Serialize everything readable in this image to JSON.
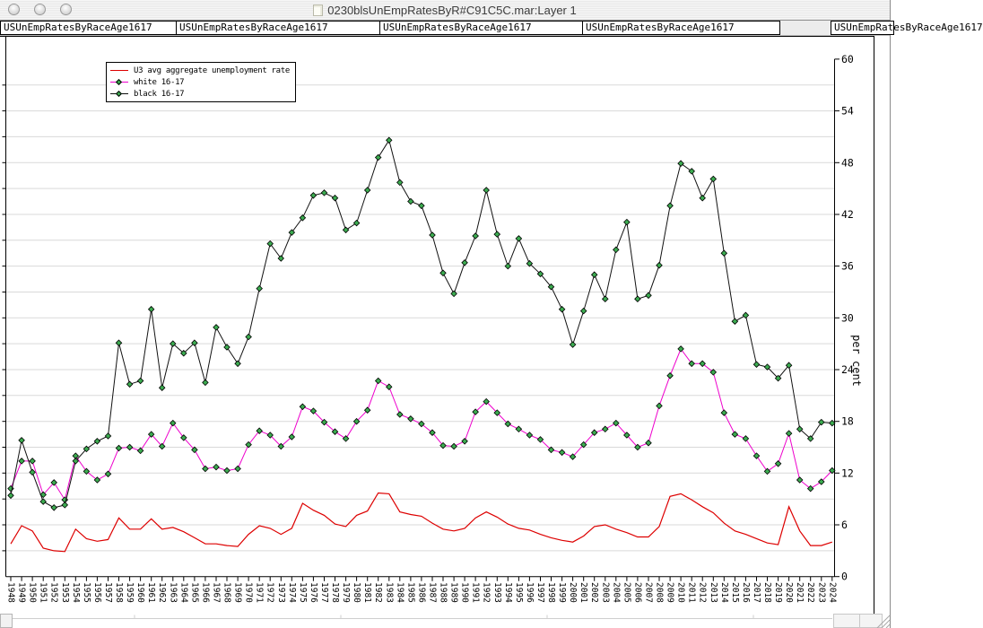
{
  "window": {
    "title": "0230blsUnEmpRatesByR#C91C5C.mar:Layer 1"
  },
  "tabs": {
    "items": [
      {
        "label": "USUnEmpRatesByRaceAge1617"
      },
      {
        "label": "USUnEmpRatesByRaceAge1617"
      },
      {
        "label": "USUnEmpRatesByRaceAge1617"
      },
      {
        "label": "USUnEmpRatesByRaceAge1617"
      },
      {
        "label": "USUnEmpRatesByRaceAge1617"
      }
    ]
  },
  "chart_data": {
    "type": "line",
    "title": "",
    "xlabel": "",
    "ylabel": "per cent",
    "ylim": [
      0,
      60
    ],
    "yticks": [
      0,
      6,
      12,
      18,
      24,
      30,
      36,
      42,
      48,
      54,
      60
    ],
    "grid": true,
    "grid_step": 3,
    "legend_position": "top-left",
    "grid_color": "#d9d9d9",
    "axis_color": "#000000",
    "marker_fill": "#3cab50",
    "x": [
      1948,
      1949,
      1950,
      1951,
      1952,
      1953,
      1954,
      1955,
      1956,
      1957,
      1958,
      1959,
      1960,
      1961,
      1962,
      1963,
      1964,
      1965,
      1966,
      1967,
      1968,
      1969,
      1970,
      1971,
      1972,
      1973,
      1974,
      1975,
      1976,
      1977,
      1978,
      1979,
      1980,
      1981,
      1982,
      1983,
      1984,
      1985,
      1986,
      1987,
      1988,
      1989,
      1990,
      1991,
      1992,
      1993,
      1994,
      1995,
      1996,
      1997,
      1998,
      1999,
      2000,
      2001,
      2002,
      2003,
      2004,
      2005,
      2006,
      2007,
      2008,
      2009,
      2010,
      2011,
      2012,
      2013,
      2014,
      2015,
      2016,
      2017,
      2018,
      2019,
      2020,
      2021,
      2022,
      2023,
      2024
    ],
    "series": [
      {
        "name": "U3 avg aggregate unemployment rate",
        "color": "#dd0000",
        "marker": "none",
        "values": [
          3.8,
          5.9,
          5.3,
          3.3,
          3.0,
          2.9,
          5.5,
          4.4,
          4.1,
          4.3,
          6.8,
          5.5,
          5.5,
          6.7,
          5.5,
          5.7,
          5.2,
          4.5,
          3.8,
          3.8,
          3.6,
          3.5,
          4.9,
          5.9,
          5.6,
          4.9,
          5.6,
          8.5,
          7.7,
          7.1,
          6.1,
          5.8,
          7.1,
          7.6,
          9.7,
          9.6,
          7.5,
          7.2,
          7.0,
          6.2,
          5.5,
          5.3,
          5.6,
          6.8,
          7.5,
          6.9,
          6.1,
          5.6,
          5.4,
          4.9,
          4.5,
          4.2,
          4.0,
          4.7,
          5.8,
          6.0,
          5.5,
          5.1,
          4.6,
          4.6,
          5.8,
          9.3,
          9.6,
          8.9,
          8.1,
          7.4,
          6.2,
          5.3,
          4.9,
          4.4,
          3.9,
          3.7,
          8.1,
          5.3,
          3.6,
          3.6,
          4.0
        ]
      },
      {
        "name": "white 16-17",
        "color": "#ee00cc",
        "marker": "diamond",
        "values": [
          10.2,
          13.4,
          13.4,
          9.5,
          10.9,
          8.9,
          14.0,
          12.2,
          11.2,
          11.9,
          14.9,
          15.0,
          14.6,
          16.5,
          15.1,
          17.8,
          16.1,
          14.7,
          12.5,
          12.7,
          12.3,
          12.5,
          15.3,
          16.9,
          16.4,
          15.1,
          16.2,
          19.7,
          19.2,
          17.9,
          16.8,
          16.0,
          18.0,
          19.3,
          22.7,
          22.0,
          18.8,
          18.3,
          17.7,
          16.7,
          15.2,
          15.1,
          15.7,
          19.1,
          20.3,
          19.0,
          17.7,
          17.1,
          16.4,
          15.9,
          14.7,
          14.4,
          13.9,
          15.3,
          16.7,
          17.1,
          17.8,
          16.4,
          15.0,
          15.5,
          19.8,
          23.3,
          26.4,
          24.7,
          24.7,
          23.7,
          19.0,
          16.5,
          16.0,
          14.0,
          12.2,
          13.1,
          16.6,
          11.2,
          10.2,
          11.0,
          12.3
        ]
      },
      {
        "name": "black 16-17",
        "color": "#111111",
        "marker": "diamond",
        "values": [
          9.4,
          15.8,
          12.1,
          8.7,
          8.0,
          8.3,
          13.4,
          14.8,
          15.7,
          16.3,
          27.1,
          22.3,
          22.7,
          31.0,
          21.9,
          27.0,
          25.9,
          27.1,
          22.5,
          28.9,
          26.6,
          24.7,
          27.8,
          33.4,
          38.6,
          36.9,
          39.9,
          41.6,
          44.2,
          44.5,
          43.9,
          40.2,
          41.0,
          44.8,
          48.6,
          50.6,
          45.7,
          43.5,
          43.0,
          39.6,
          35.2,
          32.8,
          36.4,
          39.5,
          44.8,
          39.7,
          36.0,
          39.2,
          36.3,
          35.1,
          33.6,
          31.0,
          26.9,
          30.8,
          35.0,
          32.2,
          37.9,
          41.1,
          32.2,
          32.6,
          36.1,
          43.0,
          47.9,
          47.0,
          43.9,
          46.1,
          37.5,
          29.6,
          30.3,
          24.6,
          24.3,
          23.0,
          24.5,
          17.1,
          16.0,
          17.9,
          17.8
        ]
      }
    ]
  }
}
